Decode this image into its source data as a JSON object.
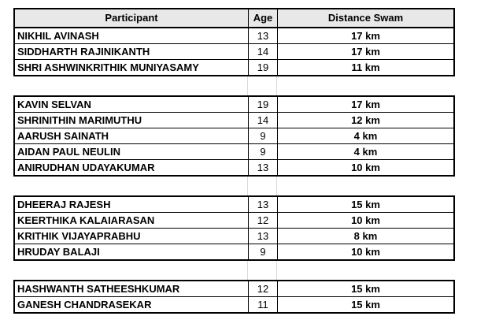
{
  "columns": {
    "participant": "Participant",
    "age": "Age",
    "distance": "Distance Swam"
  },
  "groups": [
    {
      "rows": [
        {
          "name": "NIKHIL AVINASH",
          "age": "13",
          "dist": "17 km"
        },
        {
          "name": "SIDDHARTH RAJINIKANTH",
          "age": "14",
          "dist": "17 km"
        },
        {
          "name": "SHRI ASHWINKRITHIK MUNIYASAMY",
          "age": "19",
          "dist": "11 km"
        }
      ]
    },
    {
      "rows": [
        {
          "name": "KAVIN SELVAN",
          "age": "19",
          "dist": "17 km"
        },
        {
          "name": "SHRINITHIN MARIMUTHU",
          "age": "14",
          "dist": "12 km"
        },
        {
          "name": "AARUSH SAINATH",
          "age": "9",
          "dist": "4 km"
        },
        {
          "name": "AIDAN PAUL NEULIN",
          "age": "9",
          "dist": "4 km"
        },
        {
          "name": "ANIRUDHAN UDAYAKUMAR",
          "age": "13",
          "dist": "10 km"
        }
      ]
    },
    {
      "rows": [
        {
          "name": "DHEERAJ RAJESH",
          "age": "13",
          "dist": "15 km"
        },
        {
          "name": "KEERTHIKA KALAIARASAN",
          "age": "12",
          "dist": "10 km"
        },
        {
          "name": "KRITHIK VIJAYAPRABHU",
          "age": "13",
          "dist": "8 km"
        },
        {
          "name": "HRUDAY BALAJI",
          "age": "9",
          "dist": "10 km"
        }
      ]
    },
    {
      "rows": [
        {
          "name": "HASHWANTH SATHEESHKUMAR",
          "age": "12",
          "dist": "15 km"
        },
        {
          "name": "GANESH CHANDRASEKAR",
          "age": "11",
          "dist": "15 km"
        }
      ]
    }
  ],
  "chart_data": {
    "type": "table",
    "title": "",
    "columns": [
      "Participant",
      "Age",
      "Distance Swam"
    ],
    "rows": [
      [
        "NIKHIL AVINASH",
        13,
        "17 km"
      ],
      [
        "SIDDHARTH RAJINIKANTH",
        14,
        "17 km"
      ],
      [
        "SHRI ASHWINKRITHIK MUNIYASAMY",
        19,
        "11 km"
      ],
      [
        "KAVIN SELVAN",
        19,
        "17 km"
      ],
      [
        "SHRINITHIN MARIMUTHU",
        14,
        "12 km"
      ],
      [
        "AARUSH SAINATH",
        9,
        "4 km"
      ],
      [
        "AIDAN PAUL NEULIN",
        9,
        "4 km"
      ],
      [
        "ANIRUDHAN UDAYAKUMAR",
        13,
        "10 km"
      ],
      [
        "DHEERAJ RAJESH",
        13,
        "15 km"
      ],
      [
        "KEERTHIKA KALAIARASAN",
        12,
        "10 km"
      ],
      [
        "KRITHIK VIJAYAPRABHU",
        13,
        "8 km"
      ],
      [
        "HRUDAY BALAJI",
        9,
        "10 km"
      ],
      [
        "HASHWANTH SATHEESHKUMAR",
        12,
        "15 km"
      ],
      [
        "GANESH CHANDRASEKAR",
        11,
        "15 km"
      ]
    ],
    "layout_hints": {
      "group_breaks_after_row": [
        3,
        8,
        12
      ],
      "header_fill": "#E8E8E8",
      "bold_columns": [
        "Participant",
        "Distance Swam"
      ],
      "grid": true
    }
  },
  "colors": {
    "border": "#000000",
    "header_bg": "#E8E8E8",
    "gridline": "#D9D9D9"
  }
}
